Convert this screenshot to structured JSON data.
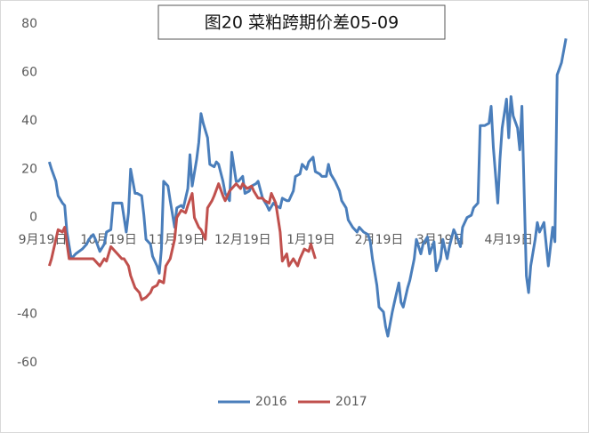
{
  "chart_data": {
    "type": "line",
    "title": "图20 菜粕跨期价差05-09",
    "xlim": [
      0,
      240
    ],
    "xticks": [
      {
        "value": 0,
        "label": "9月19日"
      },
      {
        "value": 30,
        "label": "10月19日"
      },
      {
        "value": 61,
        "label": "11月19日"
      },
      {
        "value": 91,
        "label": "12月19日"
      },
      {
        "value": 122,
        "label": "1月19日"
      },
      {
        "value": 153,
        "label": "2月19日"
      },
      {
        "value": 181,
        "label": "3月19日"
      },
      {
        "value": 212,
        "label": "4月19日"
      }
    ],
    "ylim": [
      -60,
      80
    ],
    "yticks": [
      -60,
      -40,
      0,
      20,
      40,
      60,
      80
    ],
    "grid": false,
    "series": [
      {
        "name": "2016",
        "color": "#4a7ebb",
        "x": [
          3,
          4,
          6,
          7,
          9,
          10,
          11,
          13,
          15,
          18,
          20,
          21,
          23,
          24,
          26,
          28,
          29,
          31,
          32,
          34,
          36,
          38,
          39,
          40,
          42,
          43,
          45,
          46,
          47,
          49,
          50,
          52,
          53,
          54,
          55,
          57,
          58,
          60,
          61,
          63,
          64,
          66,
          67,
          68,
          70,
          71,
          72,
          73,
          75,
          76,
          78,
          79,
          80,
          82,
          83,
          85,
          86,
          88,
          89,
          91,
          92,
          94,
          95,
          97,
          98,
          100,
          102,
          103,
          105,
          106,
          108,
          109,
          111,
          112,
          114,
          115,
          117,
          118,
          120,
          121,
          123,
          124,
          126,
          127,
          129,
          130,
          131,
          133,
          135,
          136,
          138,
          139,
          141,
          143,
          144,
          146,
          148,
          149,
          150,
          152,
          153,
          155,
          156,
          157,
          159,
          160,
          162,
          163,
          164,
          166,
          167,
          169,
          170,
          172,
          173,
          175,
          176,
          178,
          179,
          181,
          182,
          184,
          185,
          187,
          188,
          190,
          191,
          193,
          195,
          196,
          198,
          199,
          201,
          203,
          204,
          205,
          207,
          208,
          209,
          211,
          212,
          213,
          214,
          216,
          217,
          218,
          220,
          221,
          222,
          224,
          225,
          226,
          228,
          230,
          232,
          233,
          234,
          236,
          238
        ],
        "values": [
          23,
          20,
          15,
          9,
          6,
          5,
          -6,
          -17,
          -15,
          -13,
          -11,
          -9,
          -7,
          -9,
          -14,
          -11,
          -6,
          -5,
          6,
          6,
          6,
          -6,
          2,
          20,
          10,
          10,
          9,
          1,
          -9,
          -11,
          -16,
          -20,
          -23,
          -13,
          15,
          13,
          7,
          -4,
          4,
          5,
          4,
          12,
          26,
          13,
          24,
          31,
          43,
          39,
          33,
          22,
          21,
          23,
          22,
          15,
          10,
          7,
          27,
          15,
          15,
          17,
          10,
          11,
          13,
          14,
          15,
          8,
          5,
          3,
          6,
          5,
          4,
          8,
          7,
          7,
          11,
          17,
          18,
          22,
          20,
          23,
          25,
          19,
          18,
          17,
          17,
          22,
          18,
          15,
          11,
          7,
          4,
          -1,
          -4,
          -6,
          -4,
          -6,
          -7,
          -10,
          -17,
          -28,
          -37,
          -39,
          -45,
          -49,
          -39,
          -35,
          -27,
          -35,
          -37,
          -29,
          -26,
          -17,
          -9,
          -15,
          -11,
          -8,
          -15,
          -10,
          -22,
          -17,
          -9,
          -17,
          -12,
          -5,
          -7,
          -12,
          -4,
          0,
          1,
          4,
          6,
          38,
          38,
          39,
          46,
          29,
          6,
          24,
          37,
          49,
          33,
          50,
          42,
          37,
          28,
          46,
          -24,
          -31,
          -20,
          -9,
          -2,
          -6,
          -2,
          -20,
          -4,
          -10,
          59,
          64,
          74
        ]
      },
      {
        "name": "2017",
        "color": "#c0504d",
        "x": [
          3,
          4,
          6,
          7,
          9,
          10,
          12,
          15,
          18,
          20,
          23,
          24,
          26,
          28,
          29,
          31,
          32,
          34,
          36,
          37,
          39,
          40,
          42,
          44,
          45,
          47,
          49,
          50,
          52,
          53,
          55,
          56,
          58,
          60,
          61,
          63,
          65,
          66,
          68,
          69,
          71,
          72,
          74,
          75,
          77,
          78,
          80,
          82,
          83,
          85,
          86,
          88,
          90,
          91,
          93,
          95,
          96,
          98,
          100,
          101,
          103,
          104,
          106,
          108,
          109,
          111,
          112,
          114,
          116,
          117,
          119,
          121,
          122,
          124
        ],
        "values": [
          -20,
          -17,
          -9,
          -5,
          -6,
          -4,
          -17,
          -17,
          -17,
          -17,
          -17,
          -18,
          -20,
          -17,
          -18,
          -12,
          -13,
          -15,
          -17,
          -17,
          -20,
          -24,
          -29,
          -31,
          -34,
          -33,
          -31,
          -29,
          -28,
          -26,
          -27,
          -20,
          -17,
          -9,
          0,
          3,
          2,
          5,
          10,
          0,
          -4,
          -5,
          -9,
          4,
          7,
          9,
          14,
          9,
          7,
          11,
          12,
          14,
          12,
          14,
          12,
          13,
          11,
          8,
          8,
          7,
          6,
          10,
          6,
          -6,
          -18,
          -15,
          -20,
          -17,
          -20,
          -17,
          -13,
          -14,
          -11,
          -17
        ]
      }
    ]
  }
}
